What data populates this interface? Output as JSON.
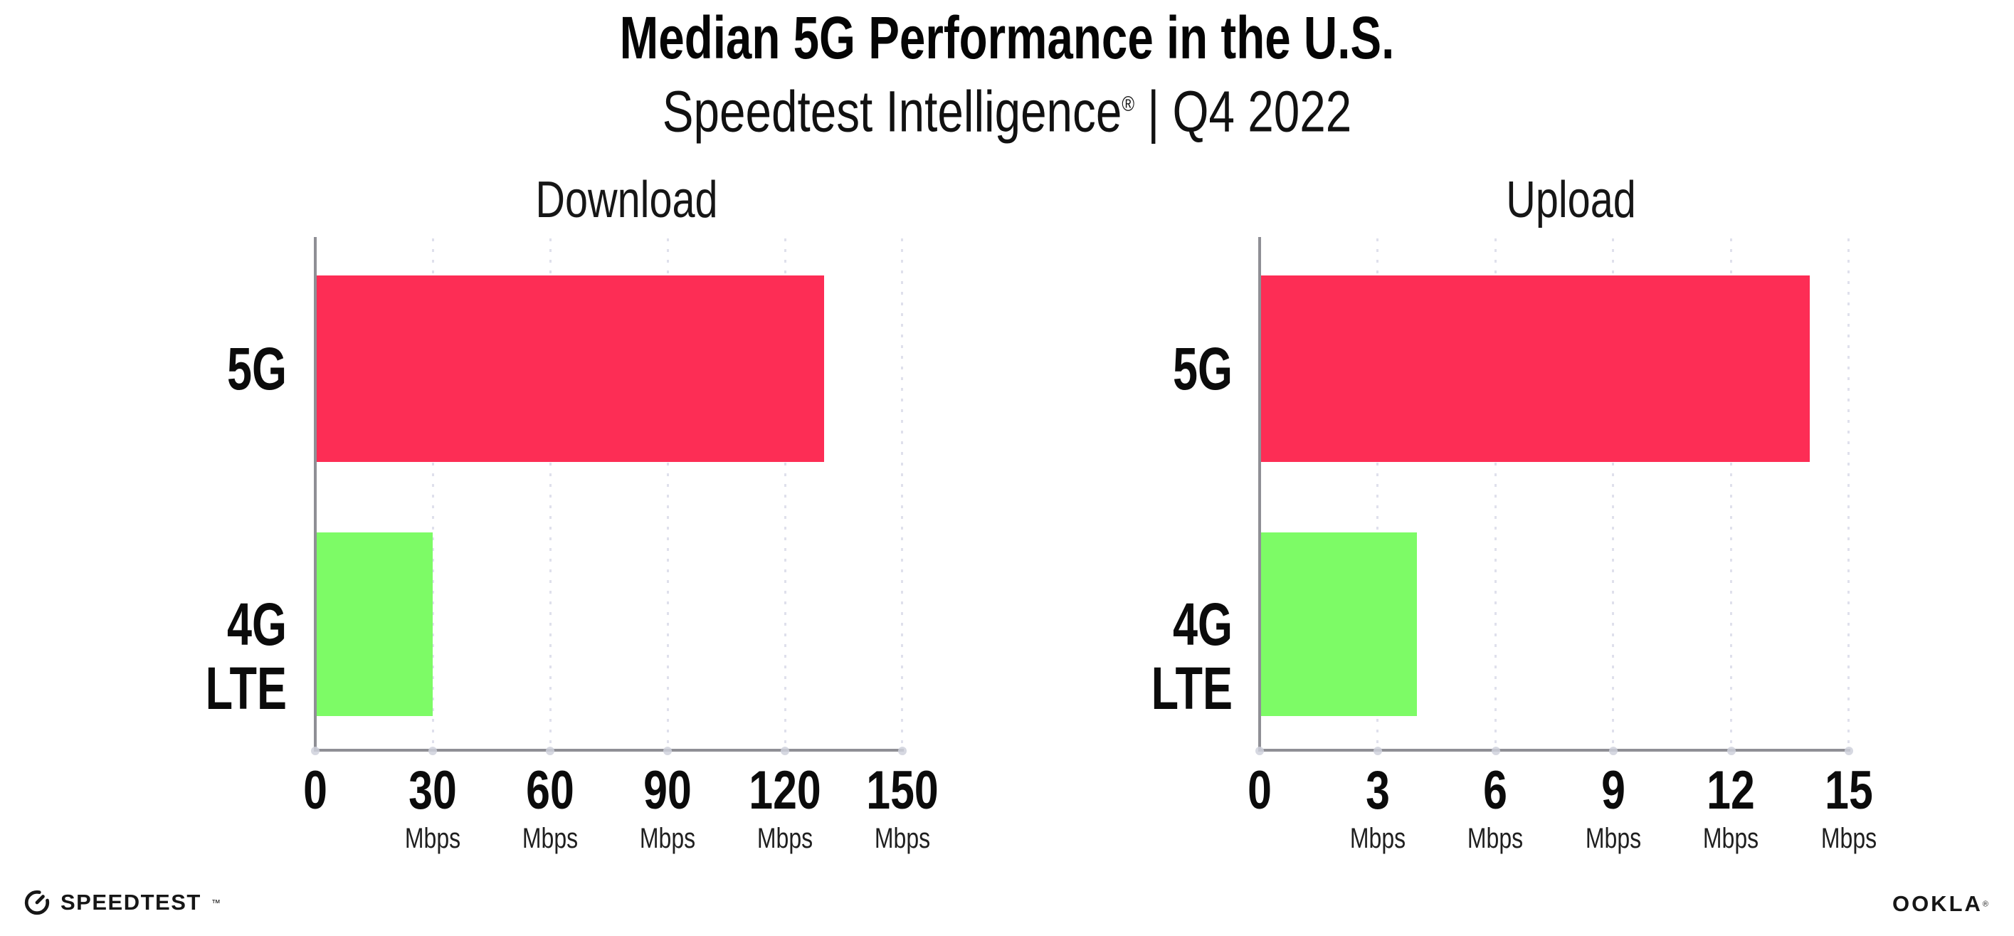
{
  "header": {
    "title": "Median 5G Performance in the U.S.",
    "subtitle_brand": "Speedtest Intelligence",
    "subtitle_mark": "®",
    "subtitle_rest": " | Q4 2022"
  },
  "chart_data": [
    {
      "type": "bar",
      "orientation": "horizontal",
      "title": "Download",
      "categories": [
        "5G",
        "4G LTE"
      ],
      "values": [
        130,
        30
      ],
      "unit": "Mbps",
      "xlim": [
        0,
        150
      ],
      "xticks": [
        0,
        30,
        60,
        90,
        120,
        150
      ],
      "grid": "vertical-dotted",
      "legend": "none",
      "bar_colors": [
        "#fd2d55",
        "#7dfb66"
      ],
      "tick_labels": [
        {
          "label": "0",
          "unit": ""
        },
        {
          "label": "30",
          "unit": "Mbps"
        },
        {
          "label": "60",
          "unit": "Mbps"
        },
        {
          "label": "90",
          "unit": "Mbps"
        },
        {
          "label": "120",
          "unit": "Mbps"
        },
        {
          "label": "150",
          "unit": "Mbps"
        }
      ]
    },
    {
      "type": "bar",
      "orientation": "horizontal",
      "title": "Upload",
      "categories": [
        "5G",
        "4G LTE"
      ],
      "values": [
        14,
        4
      ],
      "unit": "Mbps",
      "xlim": [
        0,
        15
      ],
      "xticks": [
        0,
        3,
        6,
        9,
        12,
        15
      ],
      "grid": "vertical-dotted",
      "legend": "none",
      "bar_colors": [
        "#fd2d55",
        "#7dfb66"
      ],
      "tick_labels": [
        {
          "label": "0",
          "unit": ""
        },
        {
          "label": "3",
          "unit": "Mbps"
        },
        {
          "label": "6",
          "unit": "Mbps"
        },
        {
          "label": "9",
          "unit": "Mbps"
        },
        {
          "label": "12",
          "unit": "Mbps"
        },
        {
          "label": "15",
          "unit": "Mbps"
        }
      ]
    }
  ],
  "footer": {
    "speedtest_logo": "SPEEDTEST",
    "speedtest_mark": "™",
    "ookla_logo": "OOKLA",
    "ookla_mark": "®"
  },
  "colors": {
    "bar_5g": "#fd2d55",
    "bar_4g_lte": "#7dfb66",
    "axis": "#8f8f95",
    "gridline": "#dfe0ec",
    "axis_dot": "#cfd1dc",
    "text": "#0b0b0b",
    "background": "#ffffff"
  }
}
